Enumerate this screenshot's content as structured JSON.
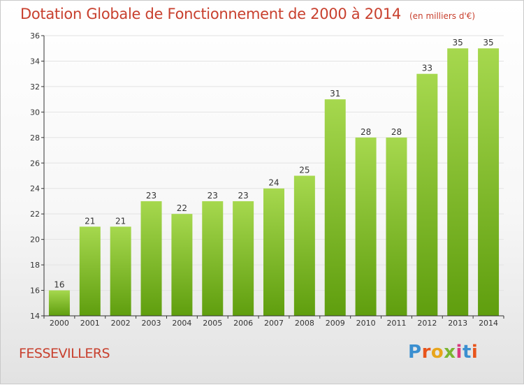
{
  "colors": {
    "title": "#c8402e",
    "bar_top": "#a6d84e",
    "bar_bottom": "#5f9e0e",
    "axis": "#333333",
    "grid": "#e3e3e3"
  },
  "header": {
    "title": "Dotation Globale de Fonctionnement de 2000 à 2014",
    "unit": "(en milliers d'€)"
  },
  "footer": {
    "commune": "FESSEVILLERS",
    "logo": "Proxiti"
  },
  "chart_data": {
    "type": "bar",
    "title": "Dotation Globale de Fonctionnement de 2000 à 2014",
    "subtitle": "(en milliers d'€)",
    "xlabel": "",
    "ylabel": "",
    "categories": [
      "2000",
      "2001",
      "2002",
      "2003",
      "2004",
      "2005",
      "2006",
      "2007",
      "2008",
      "2009",
      "2010",
      "2011",
      "2012",
      "2013",
      "2014"
    ],
    "values": [
      16,
      21,
      21,
      23,
      22,
      23,
      23,
      24,
      25,
      31,
      28,
      28,
      33,
      35,
      35
    ],
    "ylim": [
      14,
      36
    ],
    "yticks": [
      14,
      16,
      18,
      20,
      22,
      24,
      26,
      28,
      30,
      32,
      34,
      36
    ],
    "grid": true,
    "legend": "none"
  }
}
